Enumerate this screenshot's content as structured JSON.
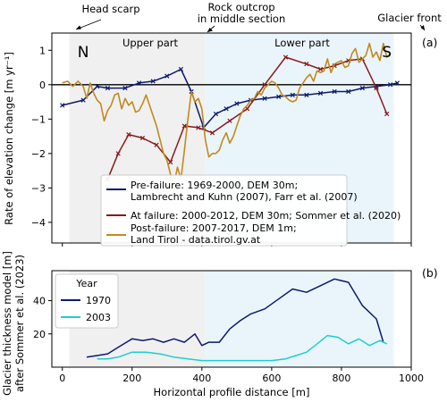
{
  "chart_data": [
    {
      "panel_label": "(a)",
      "type": "line",
      "ylabel": "Rate of elevation change [m yr⁻¹]",
      "xlim": [
        -30,
        1000
      ],
      "ylim": [
        -4.6,
        1.5
      ],
      "yticks": [
        1,
        0,
        -1,
        -2,
        -3,
        -4
      ],
      "shaded_regions": [
        {
          "x": [
            20,
            410
          ],
          "color": "#f0f0f0",
          "label": "Upper part"
        },
        {
          "x": [
            410,
            950
          ],
          "color": "#eaf5fb",
          "label": "Lower part"
        }
      ],
      "zero_line": true,
      "top_annotations": [
        {
          "text": "Head scarp",
          "x": 20
        },
        {
          "text": "Rock outcrop",
          "text2": "in middle section",
          "x": 410
        },
        {
          "text": "Glacier front",
          "x": 950
        }
      ],
      "corner_letters": [
        {
          "text": "N",
          "x": 60
        },
        {
          "text": "S",
          "x": 930
        }
      ],
      "legend": {
        "placement": "lower-center"
      },
      "series": [
        {
          "name": "Pre-failure: 1969-2000, DEM 30m;",
          "name2": "Lambrecht and Kuhn (2007), Farr et al. (2007)",
          "color": "#0d1a6e",
          "marker": "x",
          "x": [
            0,
            60,
            100,
            130,
            180,
            220,
            260,
            300,
            340,
            370,
            405,
            440,
            470,
            500,
            540,
            580,
            620,
            660,
            700,
            740,
            780,
            820,
            860,
            900,
            940,
            960
          ],
          "y": [
            -0.6,
            -0.45,
            -0.05,
            -0.1,
            -0.1,
            0.05,
            0.1,
            0.25,
            0.45,
            -0.2,
            -1.25,
            -0.85,
            -0.7,
            -0.55,
            -0.45,
            -0.4,
            -0.35,
            -0.3,
            -0.3,
            -0.25,
            -0.2,
            -0.2,
            -0.1,
            -0.05,
            0.0,
            0.05
          ]
        },
        {
          "name": "At failure: 2000-2012, DEM 30m; Sommer et al. (2020)",
          "color": "#8b1a1a",
          "marker": "x",
          "x": [
            130,
            160,
            190,
            230,
            270,
            310,
            350,
            390,
            430,
            480,
            530,
            580,
            640,
            700,
            740,
            780,
            820,
            860,
            900,
            930
          ],
          "y": [
            -2.75,
            -2.0,
            -1.45,
            -1.55,
            -1.75,
            -2.25,
            -1.2,
            -1.25,
            -1.4,
            -1.05,
            -0.7,
            0.0,
            0.8,
            0.6,
            0.45,
            0.55,
            0.7,
            0.75,
            -0.1,
            -0.85
          ]
        },
        {
          "name": "Post-failure: 2007-2017, DEM 1m;",
          "name2": "Land Tirol - data.tirol.gv.at",
          "color": "#c08a1e",
          "marker": "none",
          "x": [
            0,
            15,
            30,
            45,
            60,
            70,
            80,
            90,
            100,
            110,
            120,
            130,
            140,
            150,
            160,
            170,
            180,
            190,
            200,
            210,
            220,
            230,
            240,
            250,
            260,
            270,
            280,
            290,
            300,
            310,
            320,
            330,
            340,
            350,
            360,
            370,
            380,
            390,
            400,
            410,
            420,
            430,
            440,
            450,
            460,
            470,
            480,
            490,
            500,
            510,
            520,
            530,
            540,
            550,
            560,
            570,
            580,
            590,
            600,
            610,
            620,
            630,
            640,
            650,
            660,
            670,
            680,
            690,
            700,
            710,
            720,
            730,
            740,
            750,
            760,
            770,
            780,
            790,
            800,
            810,
            820,
            830,
            840,
            850,
            860,
            870,
            880,
            890,
            900,
            910,
            920,
            930,
            940
          ],
          "y": [
            0.05,
            0.1,
            -0.05,
            0.1,
            -0.05,
            -0.4,
            0.05,
            -0.25,
            -0.45,
            -0.55,
            -1.05,
            -0.75,
            -0.6,
            -0.3,
            -0.25,
            -0.7,
            -0.4,
            -0.6,
            -0.5,
            -0.8,
            -0.75,
            -0.55,
            -0.3,
            -0.6,
            -0.9,
            -1.2,
            -1.6,
            -2.0,
            -2.2,
            -2.6,
            -2.9,
            -2.4,
            -2.75,
            -1.9,
            -1.0,
            -0.2,
            -0.5,
            -0.4,
            -0.7,
            -1.6,
            -2.1,
            -2.0,
            -2.0,
            -1.9,
            -1.6,
            -1.4,
            -1.7,
            -1.5,
            -1.2,
            -0.9,
            -0.7,
            -0.6,
            -0.45,
            -0.4,
            -0.2,
            -0.3,
            -0.1,
            0.0,
            0.1,
            0.05,
            -0.1,
            -0.3,
            -0.35,
            -0.45,
            -0.5,
            -0.45,
            -0.1,
            0.05,
            0.2,
            0.3,
            0.1,
            0.4,
            0.35,
            0.4,
            0.75,
            0.35,
            0.6,
            0.65,
            0.7,
            0.5,
            0.55,
            0.9,
            1.05,
            0.65,
            0.75,
            0.85,
            1.2,
            0.8,
            0.95,
            0.7,
            1.2,
            0.8,
            0.9
          ]
        }
      ]
    },
    {
      "panel_label": "(b)",
      "type": "line",
      "ylabel": "Glacier thickness model [m]",
      "ylabel2": "after Sommer et al. (2023)",
      "xlabel": "Horizontal profile distance [m]",
      "xlim": [
        -30,
        1000
      ],
      "ylim": [
        0,
        58
      ],
      "xticks": [
        0,
        200,
        400,
        600,
        800,
        1000
      ],
      "yticks": [
        20,
        40
      ],
      "shaded_regions": [
        {
          "x": [
            20,
            410
          ],
          "color": "#f0f0f0"
        },
        {
          "x": [
            410,
            950
          ],
          "color": "#eaf5fb"
        }
      ],
      "legend": {
        "title": "Year",
        "placement": "upper-left"
      },
      "series": [
        {
          "name": "1970",
          "color": "#0d1a6e",
          "x": [
            70,
            100,
            130,
            160,
            200,
            230,
            260,
            290,
            320,
            350,
            380,
            400,
            420,
            450,
            480,
            510,
            540,
            580,
            620,
            660,
            700,
            740,
            780,
            820,
            860,
            900,
            920
          ],
          "y": [
            6,
            7,
            8,
            12,
            17,
            16,
            17,
            15,
            17,
            15,
            20,
            13,
            15,
            15,
            23,
            28,
            32,
            35,
            41,
            47,
            45,
            49,
            53,
            51,
            37,
            29,
            15
          ]
        },
        {
          "name": "2003",
          "color": "#1ccfcf",
          "x": [
            100,
            130,
            160,
            200,
            240,
            280,
            320,
            360,
            400,
            450,
            500,
            550,
            600,
            640,
            670,
            700,
            730,
            760,
            790,
            820,
            850,
            880,
            910,
            930
          ],
          "y": [
            5,
            5,
            6,
            9,
            9,
            8,
            6,
            5,
            4,
            4,
            4,
            4,
            4,
            5,
            7,
            9,
            14,
            19,
            18,
            14,
            17,
            13,
            16,
            14
          ]
        }
      ]
    }
  ]
}
